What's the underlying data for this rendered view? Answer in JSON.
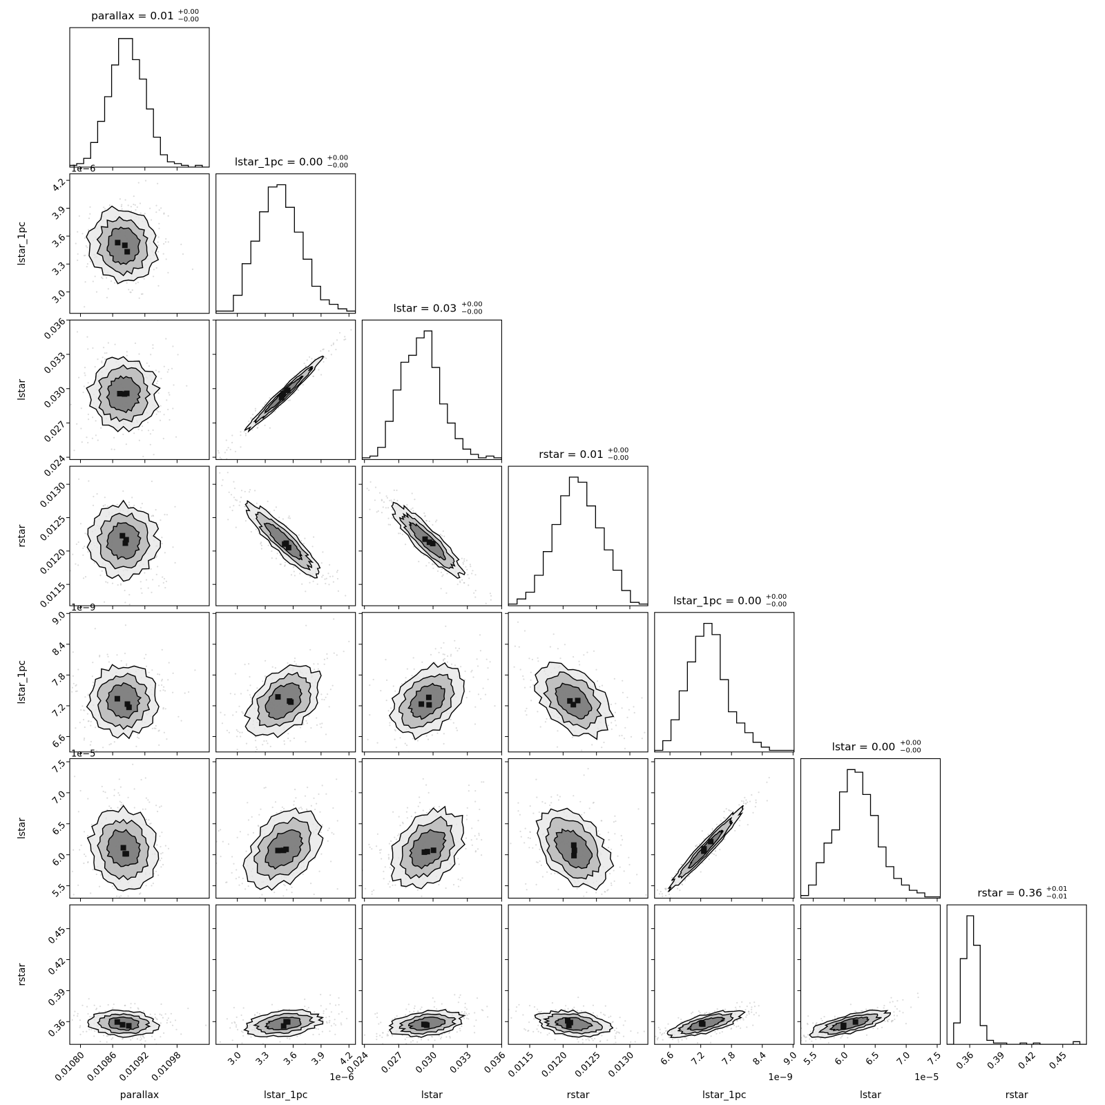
{
  "chart_data": {
    "type": "corner",
    "parameters": [
      {
        "key": "parallax",
        "label": "parallax",
        "range": [
          0.01078,
          0.01104
        ],
        "ticks": [
          0.0108,
          0.01086,
          0.01092,
          0.01098
        ],
        "tick_labels": [
          "0.01080",
          "0.01086",
          "0.01092",
          "0.01098"
        ],
        "offset": "",
        "mean": 0.01088,
        "sd": 3e-05,
        "title": {
          "main": "parallax = 0.01",
          "upper": "+0.00",
          "lower": "−0.00"
        }
      },
      {
        "key": "lstar_1pc",
        "label": "lstar_1pc",
        "range": [
          2.77,
          4.27
        ],
        "ticks": [
          3.0,
          3.3,
          3.6,
          3.9,
          4.2
        ],
        "tick_labels": [
          "3.0",
          "3.3",
          "3.6",
          "3.9",
          "4.2"
        ],
        "offset": "1e−6",
        "mean": 3.5,
        "sd": 0.19,
        "title": {
          "main": "lstar_1pc = 0.00",
          "upper": "+0.00",
          "lower": "−0.00"
        }
      },
      {
        "key": "lstar",
        "label": "lstar",
        "range": [
          0.0238,
          0.036
        ],
        "ticks": [
          0.024,
          0.027,
          0.03,
          0.033,
          0.036
        ],
        "tick_labels": [
          "0.024",
          "0.027",
          "0.030",
          "0.033",
          "0.036"
        ],
        "offset": "",
        "mean": 0.0295,
        "sd": 0.0015,
        "title": {
          "main": "lstar = 0.03",
          "upper": "+0.00",
          "lower": "−0.00"
        }
      },
      {
        "key": "rstar",
        "label": "rstar",
        "range": [
          0.01118,
          0.01327
        ],
        "ticks": [
          0.0115,
          0.012,
          0.0125,
          0.013
        ],
        "tick_labels": [
          "0.0115",
          "0.0120",
          "0.0125",
          "0.0130"
        ],
        "offset": "",
        "mean": 0.01215,
        "sd": 0.00026,
        "title": {
          "main": "rstar = 0.01",
          "upper": "+0.00",
          "lower": "−0.00"
        }
      },
      {
        "key": "lstar_1pc_2",
        "label": "lstar_1pc",
        "range": [
          6.3,
          9.02
        ],
        "ticks": [
          6.6,
          7.2,
          7.8,
          8.4,
          9.0
        ],
        "tick_labels": [
          "6.6",
          "7.2",
          "7.8",
          "8.4",
          "9.0"
        ],
        "offset": "1e−9",
        "mean": 7.3,
        "sd": 0.33,
        "title": {
          "main": "lstar_1pc = 0.00",
          "upper": "+0.00",
          "lower": "−0.00"
        }
      },
      {
        "key": "lstar_2",
        "label": "lstar",
        "range": [
          5.3,
          7.55
        ],
        "ticks": [
          5.5,
          6.0,
          6.5,
          7.0,
          7.5
        ],
        "tick_labels": [
          "5.5",
          "6.0",
          "6.5",
          "7.0",
          "7.5"
        ],
        "offset": "1e−5",
        "mean": 6.1,
        "sd": 0.3,
        "title": {
          "main": "lstar = 0.00",
          "upper": "+0.00",
          "lower": "−0.00"
        }
      },
      {
        "key": "rstar_2",
        "label": "rstar",
        "range": [
          0.338,
          0.473
        ],
        "ticks": [
          0.36,
          0.39,
          0.42,
          0.45
        ],
        "tick_labels": [
          "0.36",
          "0.39",
          "0.42",
          "0.45"
        ],
        "offset": "",
        "mean": 0.358,
        "sd": 0.006,
        "title": {
          "main": "rstar = 0.36",
          "upper": "+0.01",
          "lower": "−0.01"
        }
      }
    ],
    "correlations": {
      "1,0": -0.05,
      "2,0": 0.0,
      "2,1": 0.98,
      "3,0": 0.0,
      "3,1": -0.9,
      "3,2": -0.9,
      "4,0": 0.0,
      "4,1": 0.4,
      "4,2": 0.4,
      "4,3": -0.4,
      "5,0": -0.1,
      "5,1": 0.4,
      "5,2": 0.4,
      "5,3": -0.4,
      "5,4": 0.97,
      "6,0": -0.1,
      "6,1": 0.3,
      "6,2": 0.3,
      "6,3": -0.3,
      "6,4": 0.7,
      "6,5": 0.7
    },
    "histograms": {
      "parallax": [
        1,
        2,
        5,
        14,
        26,
        40,
        58,
        73,
        73,
        61,
        50,
        33,
        17,
        7,
        3,
        2,
        1,
        0,
        1,
        0
      ],
      "lstar_1pc": [
        1,
        1,
        8,
        22,
        32,
        45,
        56,
        57,
        47,
        36,
        24,
        12,
        6,
        4,
        2,
        1
      ],
      "lstar": [
        1,
        2,
        7,
        22,
        40,
        56,
        60,
        70,
        74,
        53,
        32,
        21,
        12,
        6,
        3,
        1,
        2,
        1
      ],
      "rstar": [
        1,
        4,
        8,
        18,
        32,
        48,
        65,
        76,
        73,
        59,
        46,
        33,
        21,
        9,
        2,
        1
      ],
      "lstar_1pc_2": [
        1,
        7,
        20,
        38,
        56,
        72,
        80,
        73,
        45,
        25,
        18,
        12,
        6,
        3,
        1,
        1,
        1
      ],
      "lstar_2": [
        2,
        10,
        27,
        42,
        52,
        81,
        98,
        96,
        79,
        63,
        39,
        24,
        15,
        10,
        6,
        4,
        1,
        1
      ],
      "rstar_2": [
        0,
        16,
        64,
        96,
        74,
        14,
        3,
        1,
        1,
        0,
        0,
        1,
        0,
        1,
        0,
        0,
        0,
        0,
        0,
        2,
        0
      ]
    }
  }
}
